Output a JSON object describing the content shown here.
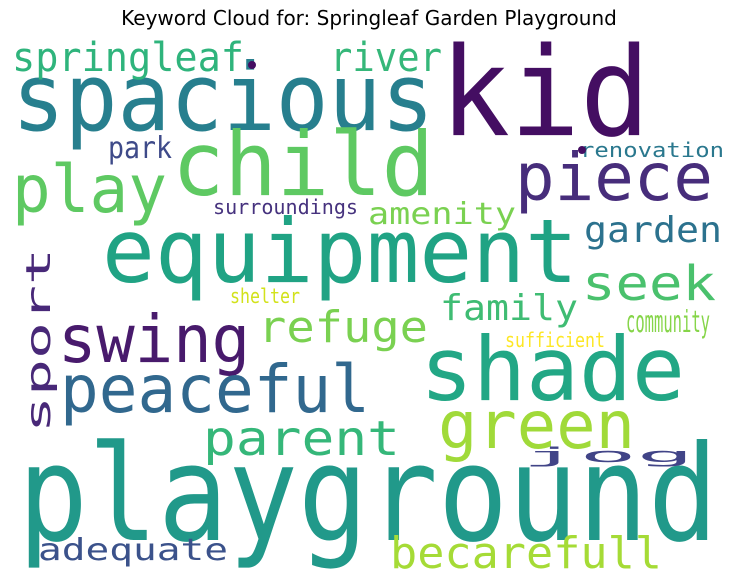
{
  "title": "Keyword Cloud for: Springleaf Garden Playground",
  "words": [
    {
      "text": "playground",
      "color": "#21998a"
    },
    {
      "text": "kid",
      "color": "#440e62"
    },
    {
      "text": "spacious",
      "color": "#277f8e"
    },
    {
      "text": "child",
      "color": "#5ec962"
    },
    {
      "text": "equipment",
      "color": "#20a384"
    },
    {
      "text": "shade",
      "color": "#22a785"
    },
    {
      "text": "piece",
      "color": "#472d7b"
    },
    {
      "text": "play",
      "color": "#5ec962"
    },
    {
      "text": "swing",
      "color": "#481a6c"
    },
    {
      "text": "peaceful",
      "color": "#31688e"
    },
    {
      "text": "green",
      "color": "#a0da39"
    },
    {
      "text": "parent",
      "color": "#35b779"
    },
    {
      "text": "springleaf",
      "color": "#2fb47c"
    },
    {
      "text": "river",
      "color": "#35b779"
    },
    {
      "text": "seek",
      "color": "#4ac16d"
    },
    {
      "text": "refuge",
      "color": "#7ad151"
    },
    {
      "text": "becarefull",
      "color": "#a5db36"
    },
    {
      "text": "garden",
      "color": "#2c728e"
    },
    {
      "text": "family",
      "color": "#3fbc73"
    },
    {
      "text": "amenity",
      "color": "#7ad151"
    },
    {
      "text": "adequate",
      "color": "#3b528b"
    },
    {
      "text": "community",
      "color": "#86d549"
    },
    {
      "text": "park",
      "color": "#3e4a89"
    },
    {
      "text": "jog",
      "color": "#414487"
    },
    {
      "text": "surroundings",
      "color": "#46327e"
    },
    {
      "text": "renovation",
      "color": "#2a788e"
    },
    {
      "text": "sufficient",
      "color": "#fde725"
    },
    {
      "text": "shelter",
      "color": "#d2e21b"
    },
    {
      "text": "sport",
      "color": "#482878"
    }
  ]
}
